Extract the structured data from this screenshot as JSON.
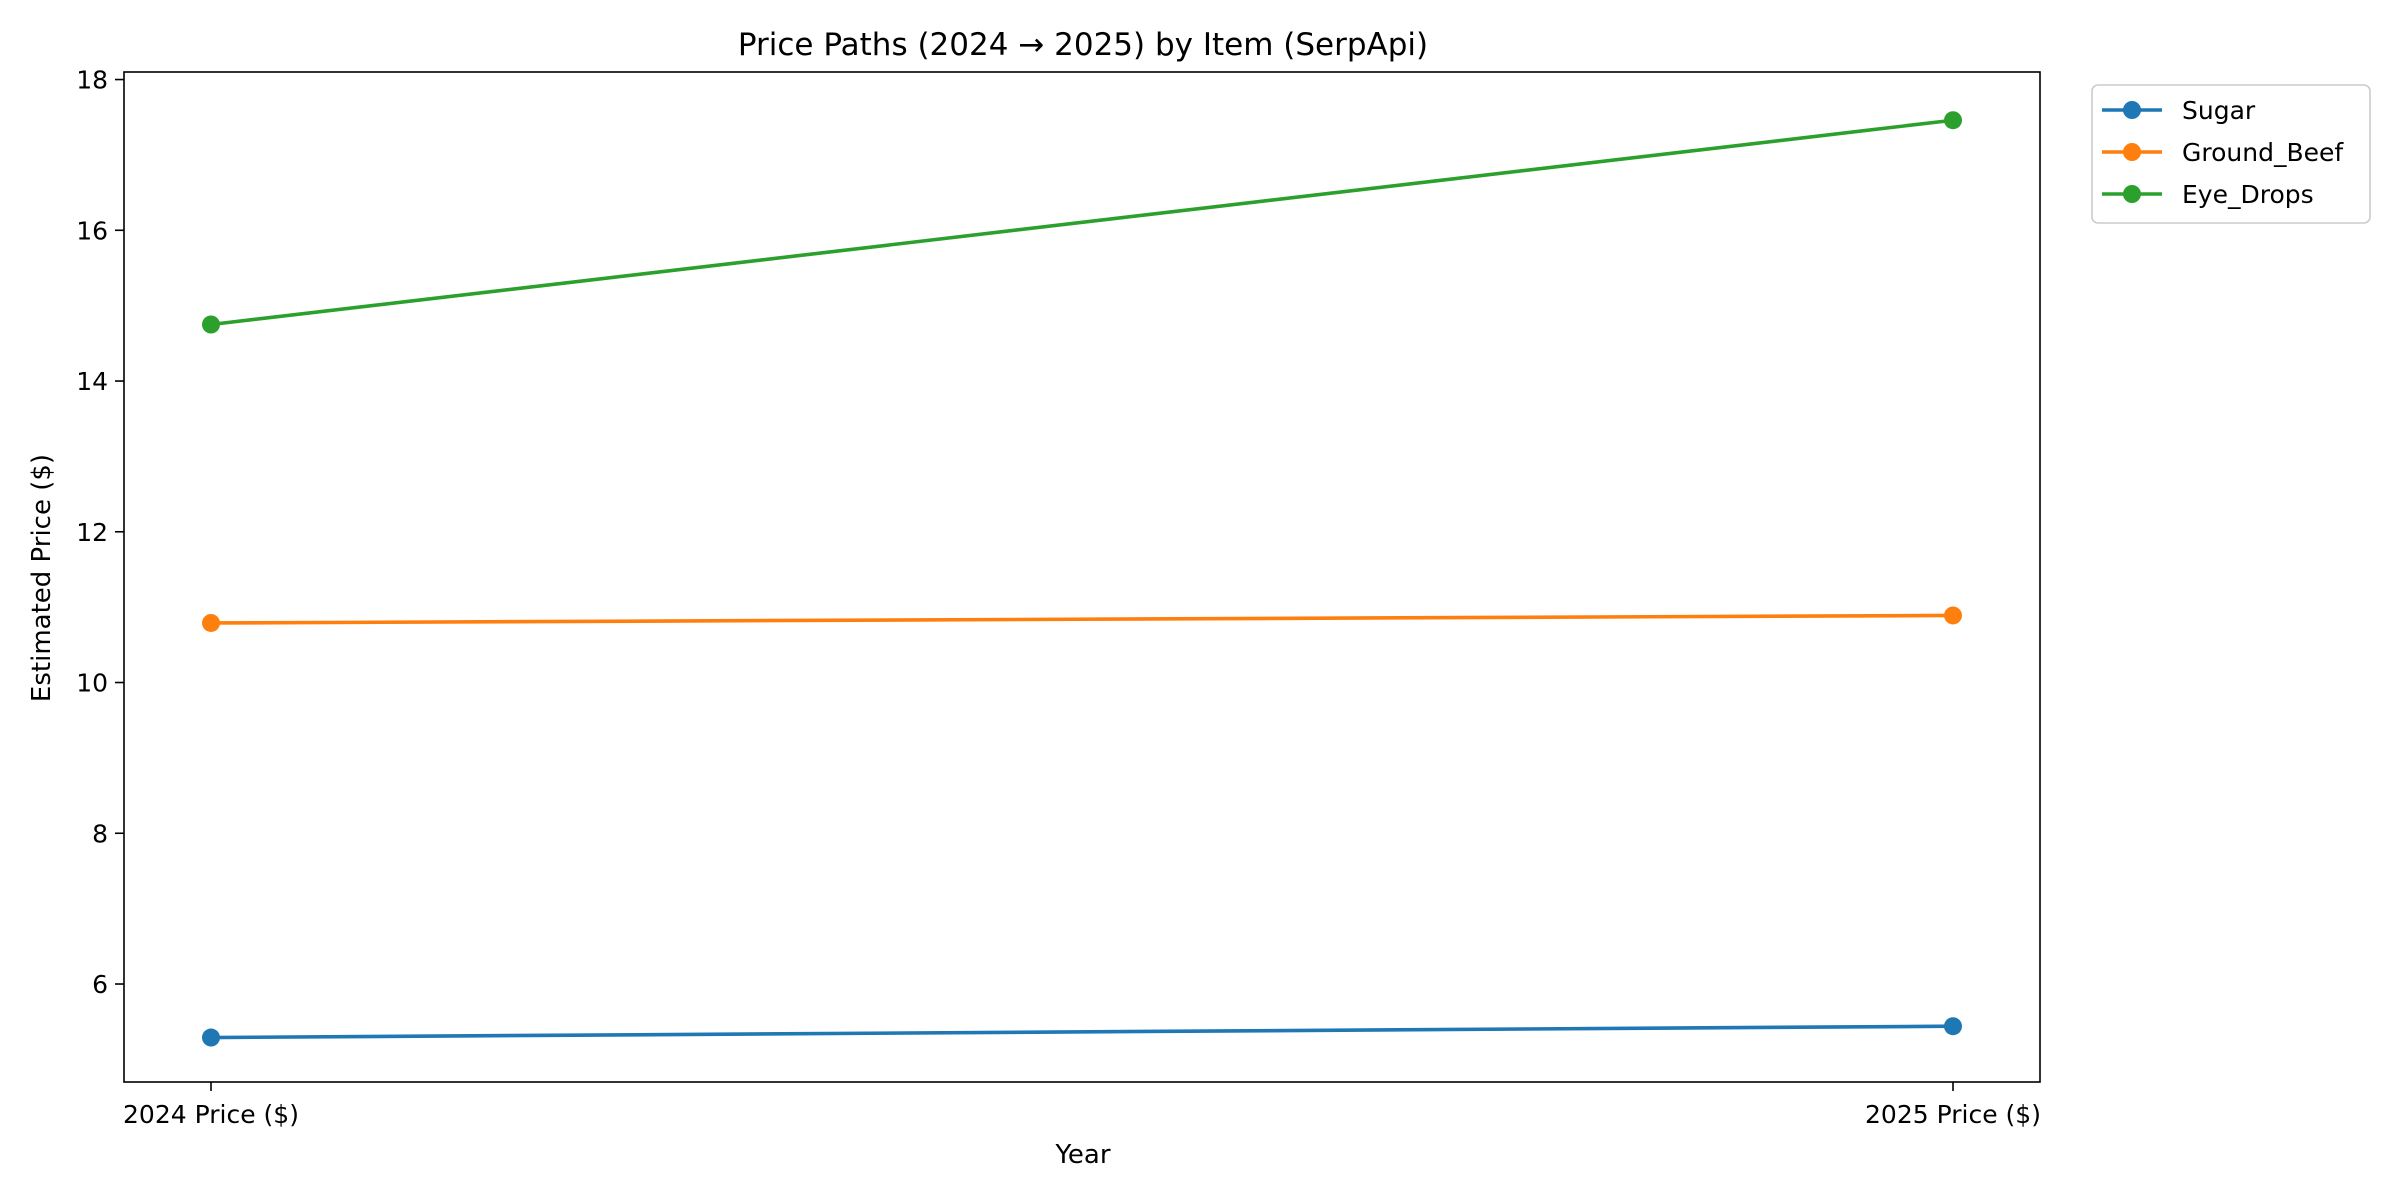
{
  "chart_data": {
    "type": "line",
    "title": "Price Paths (2024 → 2025) by Item (SerpApi)",
    "xlabel": "Year",
    "ylabel": "Estimated Price ($)",
    "categories": [
      "2024 Price ($)",
      "2025 Price ($)"
    ],
    "ylim": [
      4.7,
      18.1
    ],
    "yticks": [
      6,
      8,
      10,
      12,
      14,
      16,
      18
    ],
    "grid": false,
    "legend_position": "outside top-right",
    "series": [
      {
        "name": "Sugar",
        "values": [
          5.29,
          5.44
        ],
        "color": "#1f77b4"
      },
      {
        "name": "Ground_Beef",
        "values": [
          10.79,
          10.89
        ],
        "color": "#ff7f0e"
      },
      {
        "name": "Eye_Drops",
        "values": [
          14.75,
          17.46
        ],
        "color": "#2ca02c"
      }
    ]
  }
}
